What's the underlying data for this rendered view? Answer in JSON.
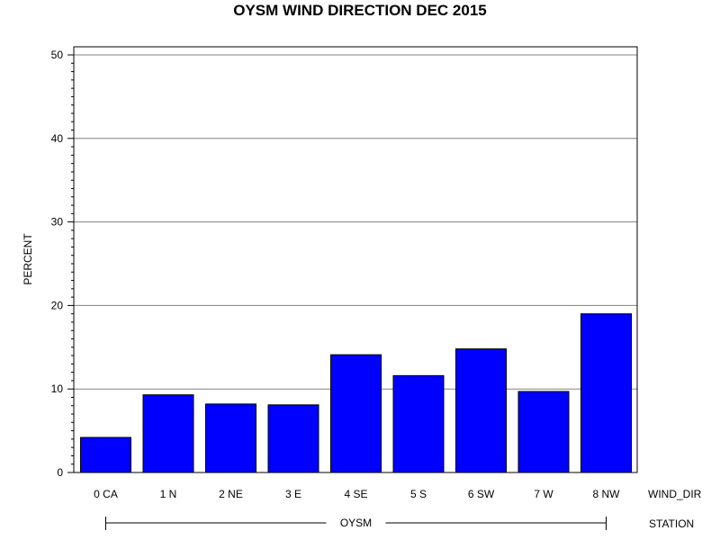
{
  "chart_data": {
    "type": "bar",
    "title": "OYSM WIND DIRECTION DEC 2015",
    "ylabel": "PERCENT",
    "xlabel": "WIND_DIR",
    "group_axis_label": "STATION",
    "group_label": "OYSM",
    "categories": [
      "0 CA",
      "1 N",
      "2 NE",
      "3 E",
      "4 SE",
      "5 S",
      "6 SW",
      "7 W",
      "8 NW"
    ],
    "values": [
      4.2,
      9.3,
      8.2,
      8.1,
      14.1,
      11.6,
      14.8,
      9.7,
      19.0
    ],
    "ylim": [
      0,
      50
    ],
    "yticks": [
      0,
      10,
      20,
      30,
      40,
      50
    ],
    "grid": true,
    "bar_color": "#0000ff",
    "bar_edge_color": "#000000",
    "grid_color": "#808080"
  }
}
